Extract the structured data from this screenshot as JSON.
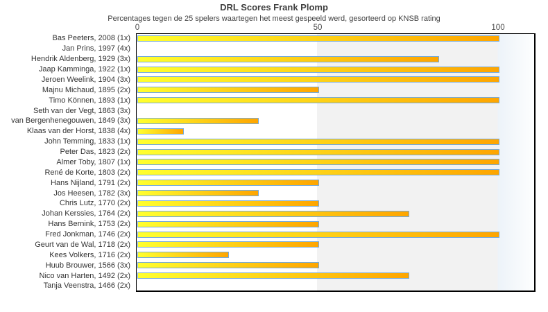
{
  "header": {
    "title": "DRL Scores Frank Plomp",
    "subtitle": "Percentages tegen de 25 spelers waartegen het meest gespeeld werd, gesorteerd op KNSB rating"
  },
  "chart_data": {
    "type": "bar",
    "orientation": "horizontal",
    "title": "DRL Scores Frank Plomp",
    "subtitle": "Percentages tegen de 25 spelers waartegen het meest gespeeld werd, gesorteerd op KNSB rating",
    "xlabel": "",
    "ylabel": "",
    "xlim": [
      0,
      110
    ],
    "x_ticks": [
      0,
      50,
      100
    ],
    "x_axis_position": "top",
    "grid": false,
    "legend": null,
    "categories": [
      "Bas Peeters, 2008 (1x)",
      "Jan Prins, 1997 (4x)",
      "Hendrik Aldenberg, 1929 (3x)",
      "Jaap Kamminga, 1922 (1x)",
      "Jeroen Weelink, 1904 (3x)",
      "Majnu Michaud, 1895 (2x)",
      "Timo Können, 1893 (1x)",
      "Seth van der Vegt, 1863 (3x)",
      "van Bergenhenegouwen, 1849 (3x)",
      "Klaas van der Horst, 1838 (4x)",
      "John Temming, 1833 (1x)",
      "Peter Das, 1823 (2x)",
      "Almer Toby, 1807 (1x)",
      "René de Korte, 1803 (2x)",
      "Hans Nijland, 1791 (2x)",
      "Jos Heesen, 1782 (3x)",
      "Chris Lutz, 1770 (2x)",
      "Johan Kerssies, 1764 (2x)",
      "Hans Bernink, 1753 (2x)",
      "Fred Jonkman, 1746 (2x)",
      "Geurt van de Wal, 1718 (2x)",
      "Kees Volkers, 1716 (2x)",
      "Huub Brouwer, 1566 (3x)",
      "Nico van Harten, 1492 (2x)",
      "Tanja Veenstra, 1466 (2x)"
    ],
    "values": [
      100,
      0,
      83.3,
      100,
      100,
      50,
      100,
      0,
      33.3,
      12.5,
      100,
      100,
      100,
      100,
      50,
      33.3,
      50,
      75,
      50,
      100,
      50,
      25,
      50,
      75,
      0
    ],
    "bands": [
      {
        "from": 0,
        "to": 50,
        "color": "#ffffff"
      },
      {
        "from": 50,
        "to": 100,
        "color": "#f2f2f2"
      },
      {
        "from": 100,
        "to": 110,
        "color": "#edf3f9"
      }
    ],
    "colors": {
      "bar_gradient_start": "#ffff2e",
      "bar_gradient_end": "#fea500",
      "bar_border": "#75aada",
      "plot_border": "#000000",
      "title_text": "#3f3f3f",
      "axis_text": "#4a4a4a",
      "label_text": "#333333"
    }
  }
}
